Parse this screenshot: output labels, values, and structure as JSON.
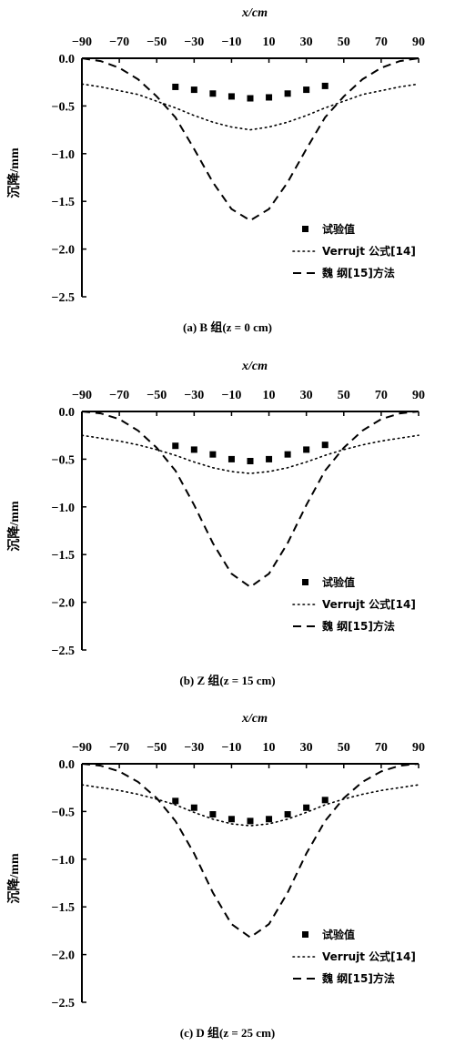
{
  "chart_data": [
    {
      "type": "line",
      "xlabel": "x/cm",
      "ylabel": "沉降/mm",
      "caption": "(a) B 组(z = 0 cm)",
      "x_ticks": [
        "−90",
        "−70",
        "−50",
        "−30",
        "−10",
        "10",
        "30",
        "50",
        "70",
        "90"
      ],
      "y_ticks": [
        "0.0",
        "−0.5",
        "−1.0",
        "−1.5",
        "−2.0",
        "−2.5"
      ],
      "xlim": [
        -90,
        90
      ],
      "ylim": [
        -2.5,
        0
      ],
      "legend_position": "bottom-right",
      "series": [
        {
          "name": "试验值",
          "style": "markers",
          "x": [
            -40,
            -30,
            -20,
            -10,
            0,
            10,
            20,
            30,
            40
          ],
          "y": [
            -0.3,
            -0.33,
            -0.37,
            -0.4,
            -0.42,
            -0.41,
            -0.37,
            -0.33,
            -0.29
          ]
        },
        {
          "name": "Verrujt 公式[14]",
          "style": "dotted",
          "x": [
            -90,
            -80,
            -70,
            -60,
            -50,
            -40,
            -30,
            -20,
            -10,
            0,
            10,
            20,
            30,
            40,
            50,
            60,
            70,
            80,
            90
          ],
          "y": [
            -0.27,
            -0.3,
            -0.34,
            -0.38,
            -0.45,
            -0.52,
            -0.6,
            -0.67,
            -0.72,
            -0.75,
            -0.72,
            -0.67,
            -0.6,
            -0.52,
            -0.45,
            -0.38,
            -0.34,
            -0.3,
            -0.27
          ]
        },
        {
          "name": "魏 纲[15]方法",
          "style": "dashed",
          "x": [
            -90,
            -80,
            -70,
            -60,
            -50,
            -40,
            -30,
            -20,
            -10,
            0,
            10,
            20,
            30,
            40,
            50,
            60,
            70,
            80,
            90
          ],
          "y": [
            0.0,
            -0.03,
            -0.1,
            -0.22,
            -0.4,
            -0.62,
            -0.95,
            -1.3,
            -1.58,
            -1.7,
            -1.58,
            -1.3,
            -0.95,
            -0.62,
            -0.4,
            -0.22,
            -0.1,
            -0.03,
            0.0
          ]
        }
      ]
    },
    {
      "type": "line",
      "xlabel": "x/cm",
      "ylabel": "沉降/mm",
      "caption": "(b) Z 组(z = 15 cm)",
      "x_ticks": [
        "−90",
        "−70",
        "−50",
        "−30",
        "−10",
        "10",
        "30",
        "50",
        "70",
        "90"
      ],
      "y_ticks": [
        "0.0",
        "−0.5",
        "−1.0",
        "−1.5",
        "−2.0",
        "−2.5"
      ],
      "xlim": [
        -90,
        90
      ],
      "ylim": [
        -2.5,
        0
      ],
      "legend_position": "bottom-right",
      "series": [
        {
          "name": "试验值",
          "style": "markers",
          "x": [
            -40,
            -30,
            -20,
            -10,
            0,
            10,
            20,
            30,
            40
          ],
          "y": [
            -0.36,
            -0.4,
            -0.45,
            -0.5,
            -0.52,
            -0.5,
            -0.45,
            -0.4,
            -0.35
          ]
        },
        {
          "name": "Verrujt 公式[14]",
          "style": "dotted",
          "x": [
            -90,
            -80,
            -70,
            -60,
            -50,
            -40,
            -30,
            -20,
            -10,
            0,
            10,
            20,
            30,
            40,
            50,
            60,
            70,
            80,
            90
          ],
          "y": [
            -0.25,
            -0.28,
            -0.31,
            -0.35,
            -0.4,
            -0.46,
            -0.53,
            -0.59,
            -0.63,
            -0.65,
            -0.63,
            -0.59,
            -0.53,
            -0.46,
            -0.4,
            -0.35,
            -0.31,
            -0.28,
            -0.25
          ]
        },
        {
          "name": "魏 纲[15]方法",
          "style": "dashed",
          "x": [
            -90,
            -80,
            -70,
            -60,
            -50,
            -40,
            -30,
            -20,
            -10,
            0,
            10,
            20,
            30,
            40,
            50,
            60,
            70,
            80,
            90
          ],
          "y": [
            0.0,
            -0.02,
            -0.08,
            -0.2,
            -0.38,
            -0.62,
            -0.98,
            -1.38,
            -1.7,
            -1.84,
            -1.7,
            -1.38,
            -0.98,
            -0.62,
            -0.38,
            -0.2,
            -0.08,
            -0.02,
            0.0
          ]
        }
      ]
    },
    {
      "type": "line",
      "xlabel": "x/cm",
      "ylabel": "沉降/mm",
      "caption": "(c) D 组(z = 25 cm)",
      "x_ticks": [
        "−90",
        "−70",
        "−50",
        "−30",
        "−10",
        "10",
        "30",
        "50",
        "70",
        "90"
      ],
      "y_ticks": [
        "0.0",
        "−0.5",
        "−1.0",
        "−1.5",
        "−2.0",
        "−2.5"
      ],
      "xlim": [
        -90,
        90
      ],
      "ylim": [
        -2.5,
        0
      ],
      "legend_position": "bottom-right",
      "series": [
        {
          "name": "试验值",
          "style": "markers",
          "x": [
            -40,
            -30,
            -20,
            -10,
            0,
            10,
            20,
            30,
            40
          ],
          "y": [
            -0.39,
            -0.46,
            -0.53,
            -0.58,
            -0.6,
            -0.58,
            -0.53,
            -0.46,
            -0.38
          ]
        },
        {
          "name": "Verrujt 公式[14]",
          "style": "dotted",
          "x": [
            -90,
            -80,
            -70,
            -60,
            -50,
            -40,
            -30,
            -20,
            -10,
            0,
            10,
            20,
            30,
            40,
            50,
            60,
            70,
            80,
            90
          ],
          "y": [
            -0.22,
            -0.25,
            -0.28,
            -0.32,
            -0.37,
            -0.43,
            -0.51,
            -0.58,
            -0.63,
            -0.65,
            -0.63,
            -0.58,
            -0.51,
            -0.43,
            -0.37,
            -0.32,
            -0.28,
            -0.25,
            -0.22
          ]
        },
        {
          "name": "魏 纲[15]方法",
          "style": "dashed",
          "x": [
            -90,
            -80,
            -70,
            -60,
            -50,
            -40,
            -30,
            -20,
            -10,
            0,
            10,
            20,
            30,
            40,
            50,
            60,
            70,
            80,
            90
          ],
          "y": [
            0.0,
            -0.02,
            -0.08,
            -0.19,
            -0.36,
            -0.6,
            -0.94,
            -1.35,
            -1.68,
            -1.82,
            -1.68,
            -1.35,
            -0.94,
            -0.6,
            -0.36,
            -0.19,
            -0.08,
            -0.02,
            0.0
          ]
        }
      ]
    }
  ]
}
